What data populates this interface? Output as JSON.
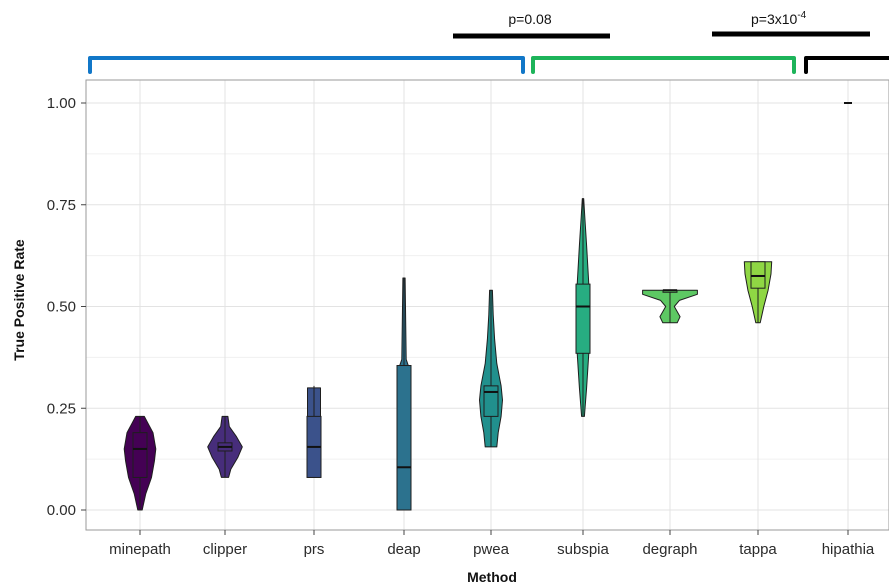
{
  "chart_data": {
    "type": "violin",
    "xlabel": "Method",
    "ylabel": "True Positive Rate",
    "ylim": [
      -0.02,
      1.06
    ],
    "yticks": [
      0.0,
      0.25,
      0.5,
      0.75,
      1.0
    ],
    "ytick_labels": [
      "0.00",
      "0.25",
      "0.50",
      "0.75",
      "1.00"
    ],
    "grid": true,
    "categories": [
      "minepath",
      "clipper",
      "prs",
      "deap",
      "pwea",
      "subspia",
      "degraph",
      "tappa",
      "hipathia"
    ],
    "series": [
      {
        "category": "minepath",
        "color": "#440154",
        "min": 0.0,
        "q1": 0.08,
        "median": 0.15,
        "q3": 0.19,
        "max": 0.23,
        "density": [
          [
            0.0,
            0.03
          ],
          [
            0.04,
            0.08
          ],
          [
            0.08,
            0.16
          ],
          [
            0.12,
            0.2
          ],
          [
            0.15,
            0.22
          ],
          [
            0.19,
            0.18
          ],
          [
            0.21,
            0.12
          ],
          [
            0.23,
            0.06
          ]
        ]
      },
      {
        "category": "clipper",
        "color": "#472d7b",
        "min": 0.08,
        "q1": 0.145,
        "median": 0.155,
        "q3": 0.165,
        "max": 0.23,
        "density": [
          [
            0.08,
            0.05
          ],
          [
            0.1,
            0.08
          ],
          [
            0.13,
            0.18
          ],
          [
            0.155,
            0.24
          ],
          [
            0.18,
            0.16
          ],
          [
            0.205,
            0.06
          ],
          [
            0.23,
            0.04
          ]
        ]
      },
      {
        "category": "prs",
        "color": "#3b528b",
        "min": 0.08,
        "q1": 0.08,
        "median": 0.155,
        "q3": 0.23,
        "max": 0.305,
        "density": [
          [
            0.08,
            0.09
          ],
          [
            0.155,
            0.09
          ],
          [
            0.23,
            0.09
          ],
          [
            0.3,
            0.09
          ]
        ]
      },
      {
        "category": "deap",
        "color": "#2c728e",
        "min": 0.0,
        "q1": 0.0,
        "median": 0.105,
        "q3": 0.355,
        "max": 0.57,
        "density": [
          [
            0.0,
            0.06
          ],
          [
            0.355,
            0.06
          ],
          [
            0.37,
            0.03
          ],
          [
            0.57,
            0.015
          ]
        ]
      },
      {
        "category": "pwea",
        "color": "#21908d",
        "min": 0.155,
        "q1": 0.23,
        "median": 0.29,
        "q3": 0.305,
        "max": 0.54,
        "density": [
          [
            0.155,
            0.08
          ],
          [
            0.19,
            0.1
          ],
          [
            0.23,
            0.14
          ],
          [
            0.27,
            0.16
          ],
          [
            0.305,
            0.14
          ],
          [
            0.36,
            0.08
          ],
          [
            0.42,
            0.05
          ],
          [
            0.48,
            0.03
          ],
          [
            0.54,
            0.02
          ]
        ]
      },
      {
        "category": "subspia",
        "color": "#27ad81",
        "min": 0.23,
        "q1": 0.385,
        "median": 0.5,
        "q3": 0.555,
        "max": 0.765,
        "density": [
          [
            0.23,
            0.02
          ],
          [
            0.3,
            0.05
          ],
          [
            0.385,
            0.08
          ],
          [
            0.5,
            0.09
          ],
          [
            0.555,
            0.08
          ],
          [
            0.65,
            0.05
          ],
          [
            0.72,
            0.025
          ],
          [
            0.765,
            0.01
          ]
        ]
      },
      {
        "category": "degraph",
        "color": "#5dc863",
        "min": 0.46,
        "q1": 0.535,
        "median": 0.54,
        "q3": 0.54,
        "max": 0.54,
        "density": [
          [
            0.46,
            0.1
          ],
          [
            0.475,
            0.14
          ],
          [
            0.5,
            0.06
          ],
          [
            0.515,
            0.13
          ],
          [
            0.53,
            0.38
          ],
          [
            0.54,
            0.38
          ]
        ]
      },
      {
        "category": "tappa",
        "color": "#8fd744",
        "min": 0.46,
        "q1": 0.545,
        "median": 0.575,
        "q3": 0.61,
        "max": 0.61,
        "density": [
          [
            0.46,
            0.03
          ],
          [
            0.5,
            0.08
          ],
          [
            0.54,
            0.14
          ],
          [
            0.58,
            0.18
          ],
          [
            0.61,
            0.19
          ]
        ]
      },
      {
        "category": "hipathia",
        "color": "#fde725",
        "min": 1.0,
        "q1": 1.0,
        "median": 1.0,
        "q3": 1.0,
        "max": 1.0,
        "density": []
      }
    ],
    "annotations": {
      "pvalues": [
        {
          "text": "p=0.08"
        },
        {
          "text": "p=3x10",
          "sup": "-4"
        }
      ],
      "brackets": [
        {
          "color": "#1177c8",
          "from": "minepath",
          "to": "pwea"
        },
        {
          "color": "#1db45a",
          "from": "subspia",
          "to": "tappa"
        },
        {
          "color": "#000000",
          "from": "hipathia",
          "to": "hipathia"
        }
      ]
    }
  }
}
